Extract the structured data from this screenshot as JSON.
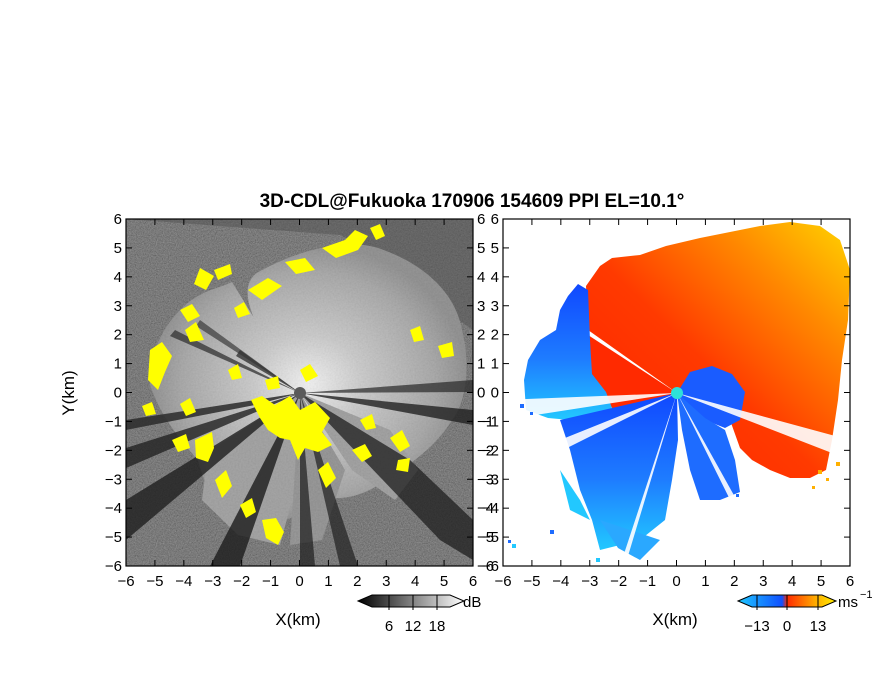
{
  "chart_data": {
    "title": "3D-CDL@Fukuoka 170906 154609 PPI EL=10.1°",
    "panels": [
      {
        "id": "left",
        "type": "heatmap",
        "description": "radar reflectivity / SNR",
        "xlabel": "X(km)",
        "ylabel": "Y(km)",
        "xlim": [
          -6,
          6
        ],
        "ylim": [
          -6,
          6
        ],
        "xticks": [
          "−6",
          "−5",
          "−4",
          "−3",
          "−2",
          "−1",
          "0",
          "1",
          "2",
          "3",
          "4",
          "5",
          "6"
        ],
        "yticks": [
          "−6",
          "−5",
          "−4",
          "−3",
          "−2",
          "−1",
          "0",
          "1",
          "2",
          "3",
          "4",
          "5",
          "6"
        ],
        "colorscale": "grayscale",
        "highlight_color": "#ffff00",
        "center_marker_color": "#555555",
        "colorbar": {
          "unit": "dB",
          "ticks": [
            "6",
            "12",
            "18"
          ]
        }
      },
      {
        "id": "right",
        "type": "heatmap",
        "description": "Doppler radial velocity",
        "xlabel": "X(km)",
        "xlim": [
          -6,
          6
        ],
        "ylim": [
          -6,
          6
        ],
        "xticks": [
          "−6",
          "−5",
          "−4",
          "−3",
          "−2",
          "−1",
          "0",
          "1",
          "2",
          "3",
          "4",
          "5",
          "6"
        ],
        "yticks": [
          "−6",
          "−5",
          "−4",
          "−3",
          "−2",
          "−1",
          "0",
          "1",
          "2",
          "3",
          "4",
          "5",
          "6"
        ],
        "colorscale": [
          "#1ec8ff",
          "#1050ff",
          "#ff2a00",
          "#ffb000",
          "#ffee00"
        ],
        "center_marker_color": "#2ee0d8",
        "colorbar": {
          "unit": "ms",
          "unit_exponent": "−1",
          "ticks": [
            "−13",
            "0",
            "13"
          ]
        }
      }
    ]
  }
}
